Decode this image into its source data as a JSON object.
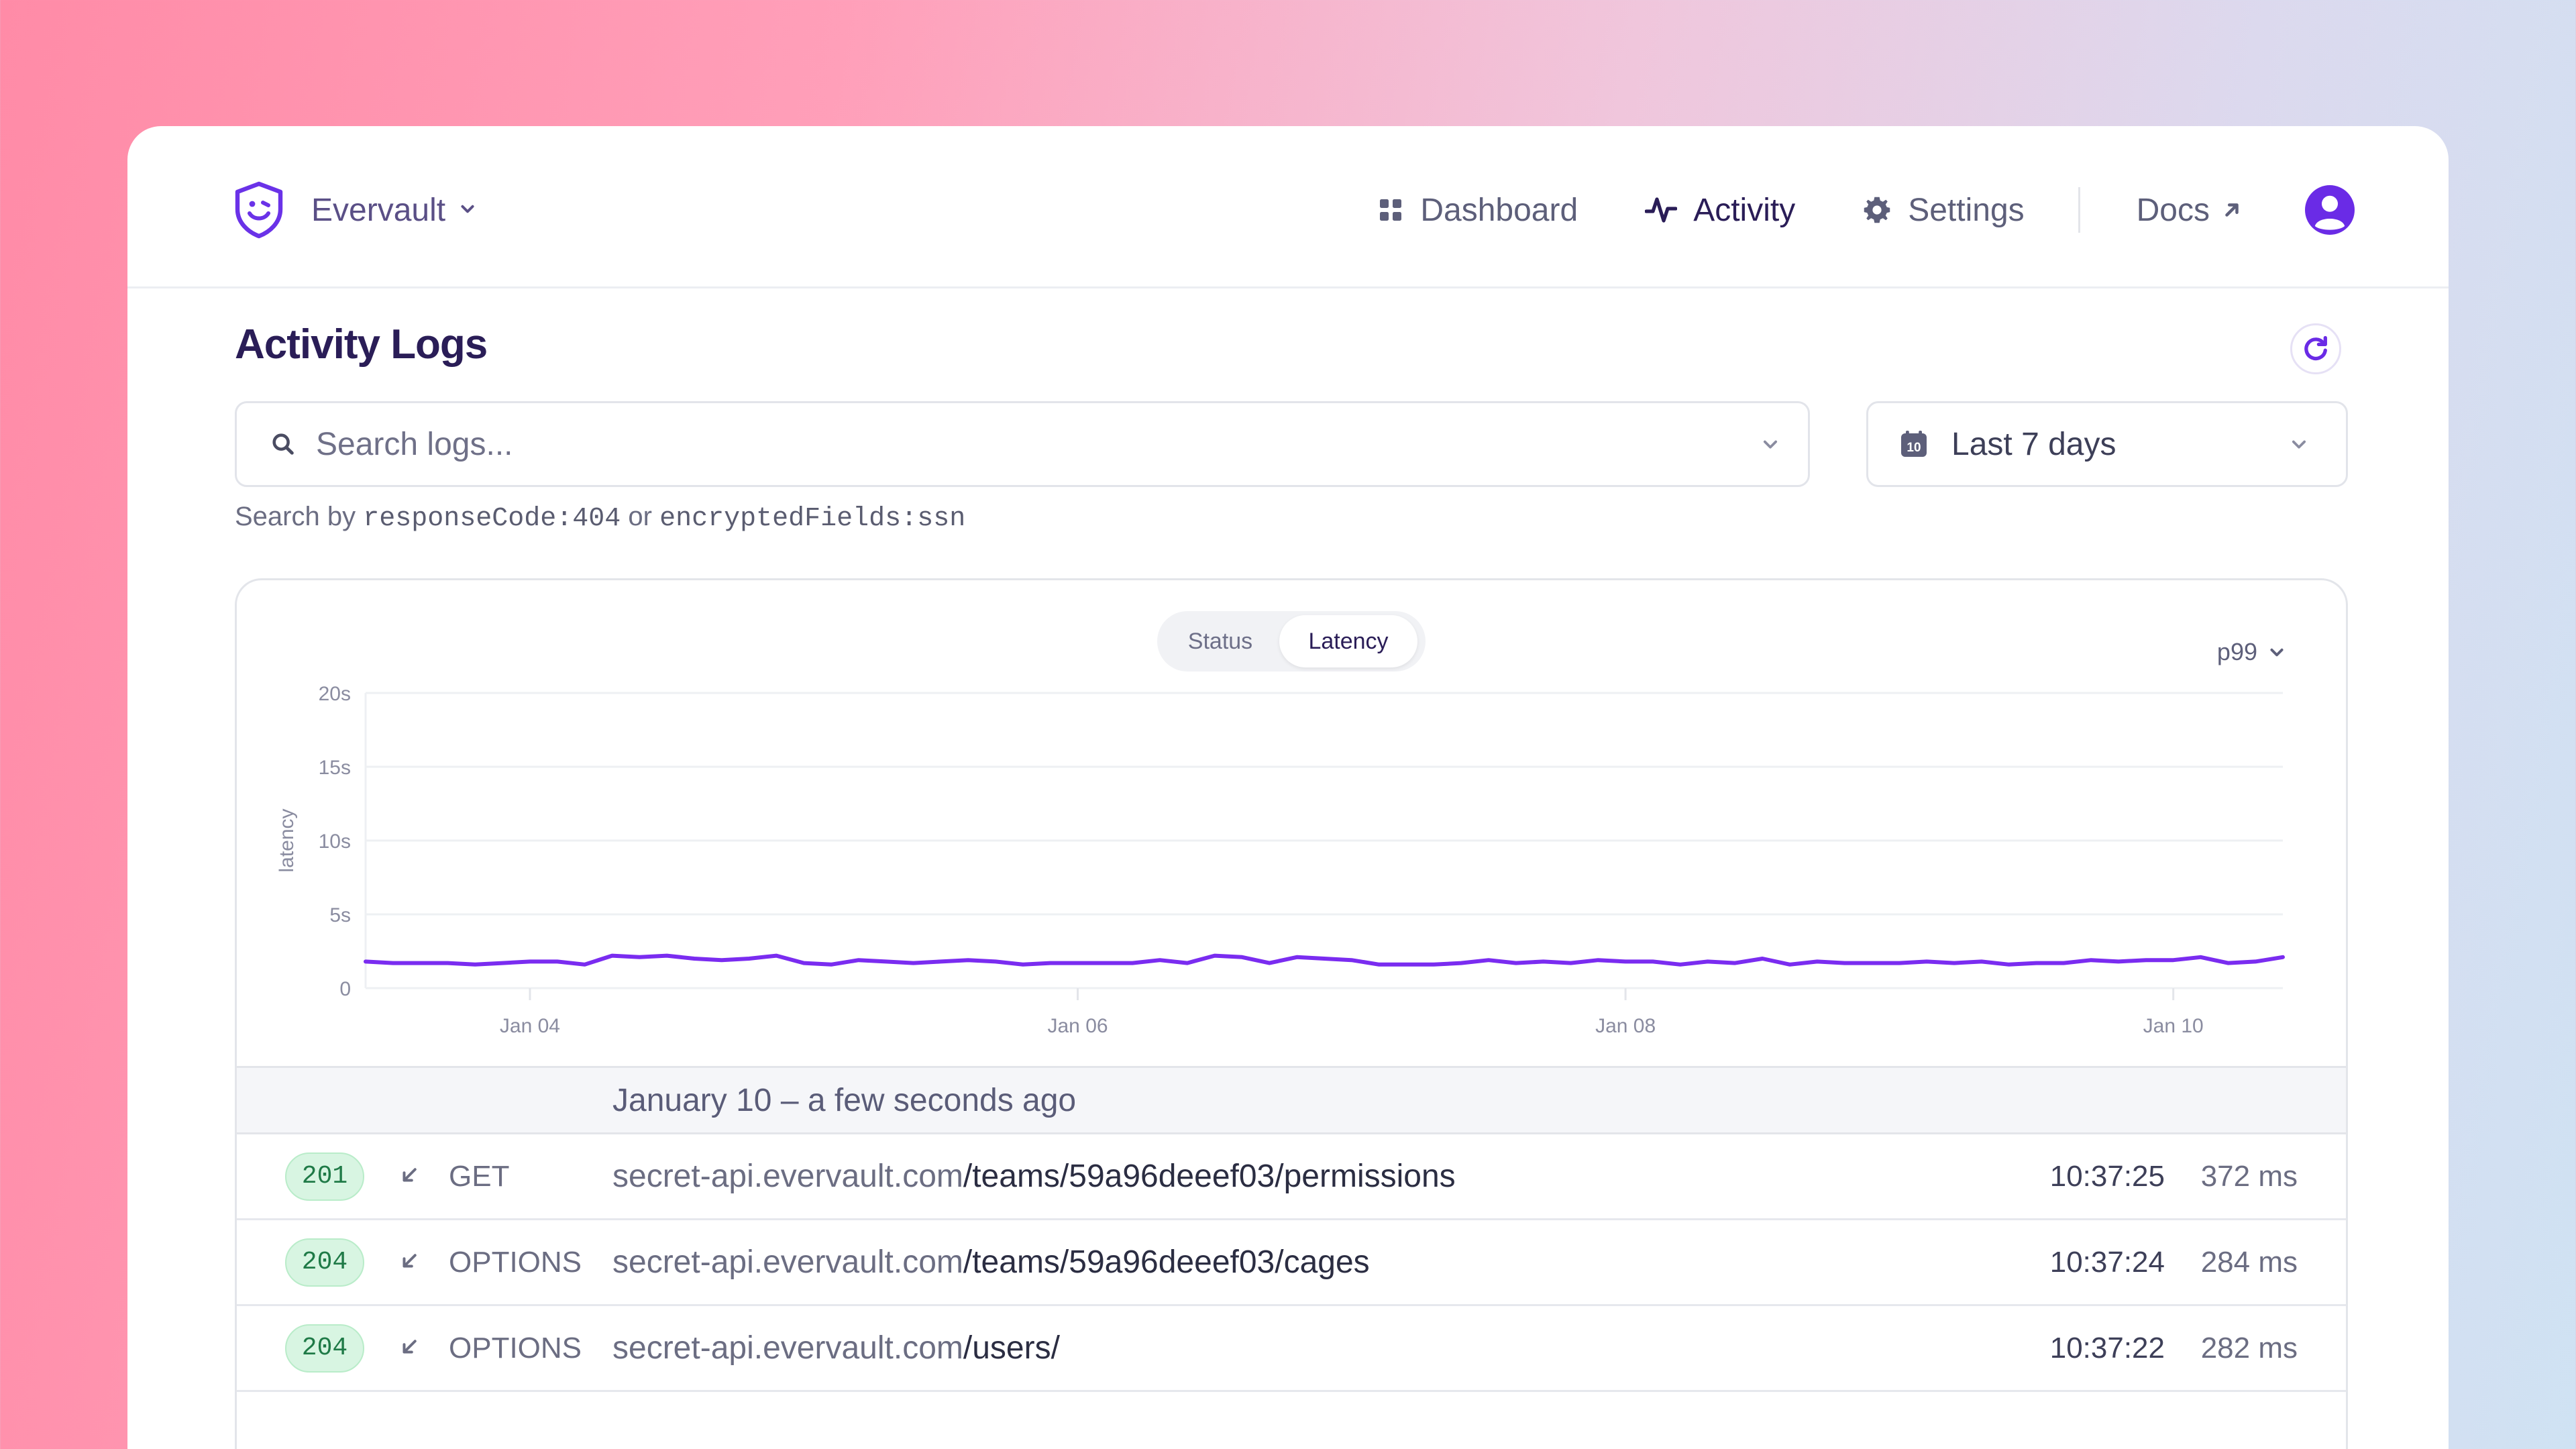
{
  "colors": {
    "accent": "#7a2cf0",
    "title": "#2a1d57",
    "success_badge_bg": "#d8f5e2",
    "success_badge_text": "#1f7a47",
    "chart_line": "#7a2cf0"
  },
  "header": {
    "org_name": "Evervault",
    "nav": [
      {
        "label": "Dashboard",
        "icon": "grid-icon"
      },
      {
        "label": "Activity",
        "icon": "activity-icon",
        "active": true
      },
      {
        "label": "Settings",
        "icon": "gear-icon"
      },
      {
        "label": "Docs",
        "icon": "external-link-icon"
      }
    ]
  },
  "page": {
    "title": "Activity Logs",
    "search_placeholder": "Search logs...",
    "date_range": "Last 7 days",
    "calendar_day": "10",
    "hint": {
      "prefix": "Search by",
      "example1": "responseCode:404",
      "joiner": "or",
      "example2": "encryptedFields:ssn"
    }
  },
  "chart_panel": {
    "toggle": {
      "status": "Status",
      "latency": "Latency",
      "selected": "Latency"
    },
    "percentile": "p99"
  },
  "chart_data": {
    "type": "line",
    "ylabel": "latency",
    "ylim": [
      0,
      20
    ],
    "y_ticks": [
      "20s",
      "15s",
      "10s",
      "5s",
      "0"
    ],
    "x_ticks": [
      "Jan 04",
      "Jan 06",
      "Jan 08",
      "Jan 10"
    ],
    "x_tick_days": [
      4,
      6,
      8,
      10
    ],
    "x_range_days": [
      3.4,
      10.4
    ],
    "grid": true,
    "series": [
      {
        "x": [
          3.4,
          3.5,
          3.6,
          3.7,
          3.8,
          3.9,
          4.0,
          4.1,
          4.2,
          4.3,
          4.4,
          4.5,
          4.6,
          4.7,
          4.8,
          4.9,
          5.0,
          5.1,
          5.2,
          5.3,
          5.4,
          5.5,
          5.6,
          5.7,
          5.8,
          5.9,
          6.0,
          6.1,
          6.2,
          6.3,
          6.4,
          6.5,
          6.6,
          6.7,
          6.8,
          6.9,
          7.0,
          7.1,
          7.2,
          7.3,
          7.4,
          7.5,
          7.6,
          7.7,
          7.8,
          7.9,
          8.0,
          8.1,
          8.2,
          8.3,
          8.4,
          8.5,
          8.6,
          8.7,
          8.8,
          8.9,
          9.0,
          9.1,
          9.2,
          9.3,
          9.4,
          9.5,
          9.6,
          9.7,
          9.8,
          9.9,
          10.0,
          10.1,
          10.2,
          10.3,
          10.4
        ],
        "values": [
          1.8,
          1.7,
          1.7,
          1.7,
          1.6,
          1.7,
          1.8,
          1.8,
          1.6,
          2.2,
          2.1,
          2.2,
          2.0,
          1.9,
          2.0,
          2.2,
          1.7,
          1.6,
          1.9,
          1.8,
          1.7,
          1.8,
          1.9,
          1.8,
          1.6,
          1.7,
          1.7,
          1.7,
          1.7,
          1.9,
          1.7,
          2.2,
          2.1,
          1.7,
          2.1,
          2.0,
          1.9,
          1.6,
          1.6,
          1.6,
          1.7,
          1.9,
          1.7,
          1.8,
          1.7,
          1.9,
          1.8,
          1.8,
          1.6,
          1.8,
          1.7,
          2.0,
          1.6,
          1.8,
          1.7,
          1.7,
          1.7,
          1.8,
          1.7,
          1.8,
          1.6,
          1.7,
          1.7,
          1.9,
          1.8,
          1.9,
          1.9,
          2.1,
          1.7,
          1.8,
          2.1
        ]
      }
    ]
  },
  "logs": {
    "group_label": "January 10 – a few seconds ago",
    "rows": [
      {
        "status": "201",
        "method": "GET",
        "host": "secret-api.evervault.com",
        "path": "/teams/59a96deeef03/permissions",
        "time": "10:37:25",
        "duration": "372 ms"
      },
      {
        "status": "204",
        "method": "OPTIONS",
        "host": "secret-api.evervault.com",
        "path": "/teams/59a96deeef03/cages",
        "time": "10:37:24",
        "duration": "284 ms"
      },
      {
        "status": "204",
        "method": "OPTIONS",
        "host": "secret-api.evervault.com",
        "path": "/users/",
        "time": "10:37:22",
        "duration": "282 ms"
      }
    ]
  }
}
